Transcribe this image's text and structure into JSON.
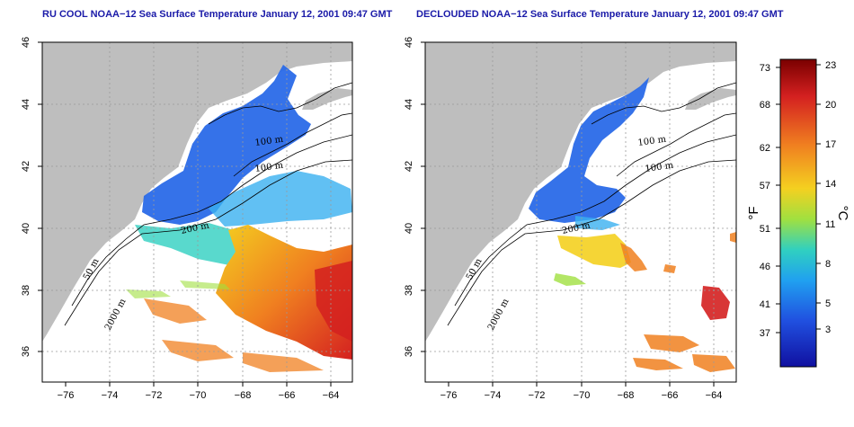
{
  "panels": [
    {
      "id": "left",
      "title": "RU COOL NOAA−12 Sea Surface Temperature January 12, 2001 09:47 GMT",
      "isobaths": [
        "100 m",
        "100 m",
        "200 m",
        "50 m",
        "2000 m"
      ]
    },
    {
      "id": "right",
      "title": "DECLOUDED NOAA−12 Sea Surface Temperature January 12, 2001 09:47 GMT",
      "isobaths": [
        "100 m",
        "100 m",
        "200 m",
        "50 m",
        "2000 m"
      ]
    }
  ],
  "axes": {
    "lon_ticks": [
      "−76",
      "−74",
      "−72",
      "−70",
      "−68",
      "−66",
      "−64"
    ],
    "lat_ticks": [
      "36",
      "38",
      "40",
      "42",
      "44",
      "46"
    ],
    "lon_range": [
      -77,
      -63
    ],
    "lat_range": [
      35,
      46
    ]
  },
  "colorbar": {
    "fahrenheit_ticks": [
      "73",
      "68",
      "62",
      "57",
      "51",
      "46",
      "41",
      "37"
    ],
    "celsius_ticks": [
      "23",
      "20",
      "17",
      "14",
      "11",
      "8",
      "5",
      "3"
    ],
    "fahrenheit_label": "°F",
    "celsius_label": "°C",
    "colors": [
      "#7a0000",
      "#d42020",
      "#f08020",
      "#f4d020",
      "#a0e040",
      "#30d0c0",
      "#20a0f0",
      "#2050e0",
      "#1010a0"
    ]
  },
  "colors": {
    "land": "#bebebe",
    "grid": "#9a9a9a",
    "contour": "#000000",
    "title": "#1a1aa8"
  }
}
